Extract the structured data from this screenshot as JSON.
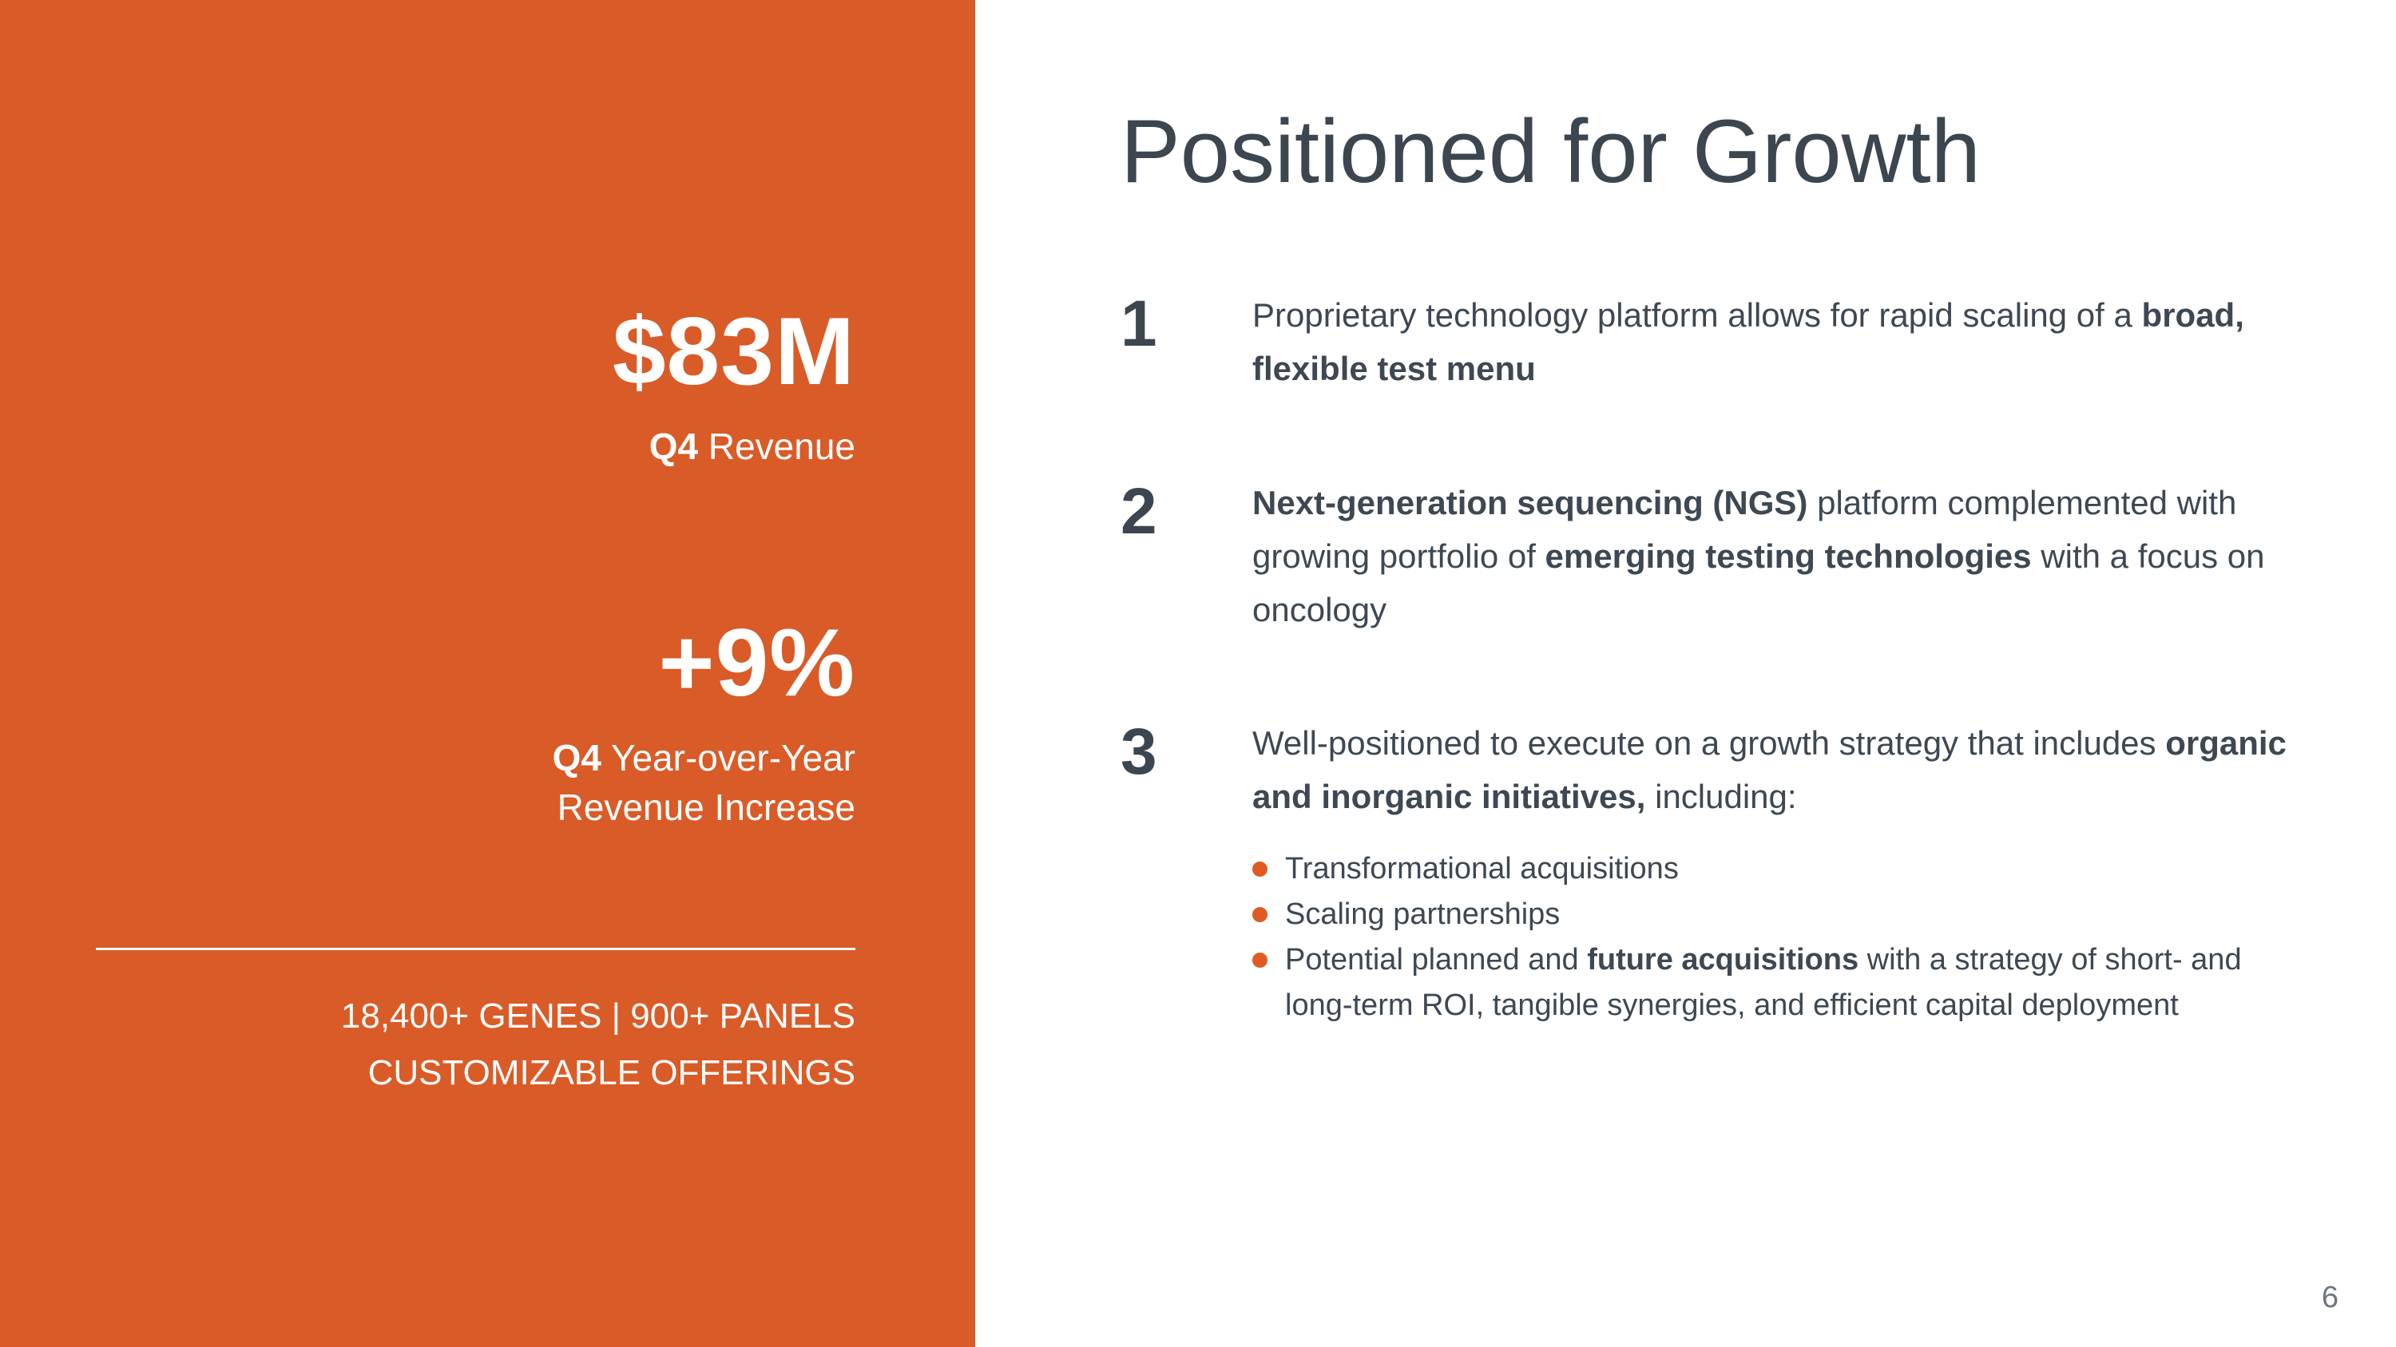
{
  "slide": {
    "page_number": "6"
  },
  "colors": {
    "accent": "#D95B27",
    "text": "#3D4853"
  },
  "left_panel": {
    "stat1": {
      "value": "$83M",
      "label_bold": "Q4",
      "label_rest": " Revenue"
    },
    "stat2": {
      "value": "+9%",
      "label_bold": "Q4",
      "label_rest": " Year-over-Year",
      "label_line2": "Revenue Increase"
    },
    "footer_line1": "18,400+ GENES | 900+ PANELS",
    "footer_line2": "CUSTOMIZABLE OFFERINGS"
  },
  "main": {
    "title": "Positioned for Growth",
    "items": [
      {
        "number": "1",
        "segments": [
          {
            "text": "Proprietary technology platform allows for rapid scaling of a ",
            "bold": false
          },
          {
            "text": "broad, flexible test menu",
            "bold": true
          }
        ]
      },
      {
        "number": "2",
        "segments": [
          {
            "text": "Next-generation sequencing (NGS)",
            "bold": true
          },
          {
            "text": " platform complemented with growing portfolio of ",
            "bold": false
          },
          {
            "text": "emerging testing technologies",
            "bold": true
          },
          {
            "text": " with a focus on oncology",
            "bold": false
          }
        ]
      },
      {
        "number": "3",
        "segments": [
          {
            "text": "Well-positioned to execute on a growth strategy that includes ",
            "bold": false
          },
          {
            "text": "organic and inorganic initiatives,",
            "bold": true
          },
          {
            "text": " including:",
            "bold": false
          }
        ]
      }
    ],
    "bullets": [
      {
        "segments": [
          {
            "text": "Transformational acquisitions",
            "bold": false
          }
        ]
      },
      {
        "segments": [
          {
            "text": "Scaling partnerships",
            "bold": false
          }
        ]
      },
      {
        "segments": [
          {
            "text": "Potential planned and ",
            "bold": false
          },
          {
            "text": "future acquisitions",
            "bold": true
          },
          {
            "text": " with a strategy of short- and long-term ROI, tangible synergies, and efficient capital deployment",
            "bold": false
          }
        ]
      }
    ]
  }
}
